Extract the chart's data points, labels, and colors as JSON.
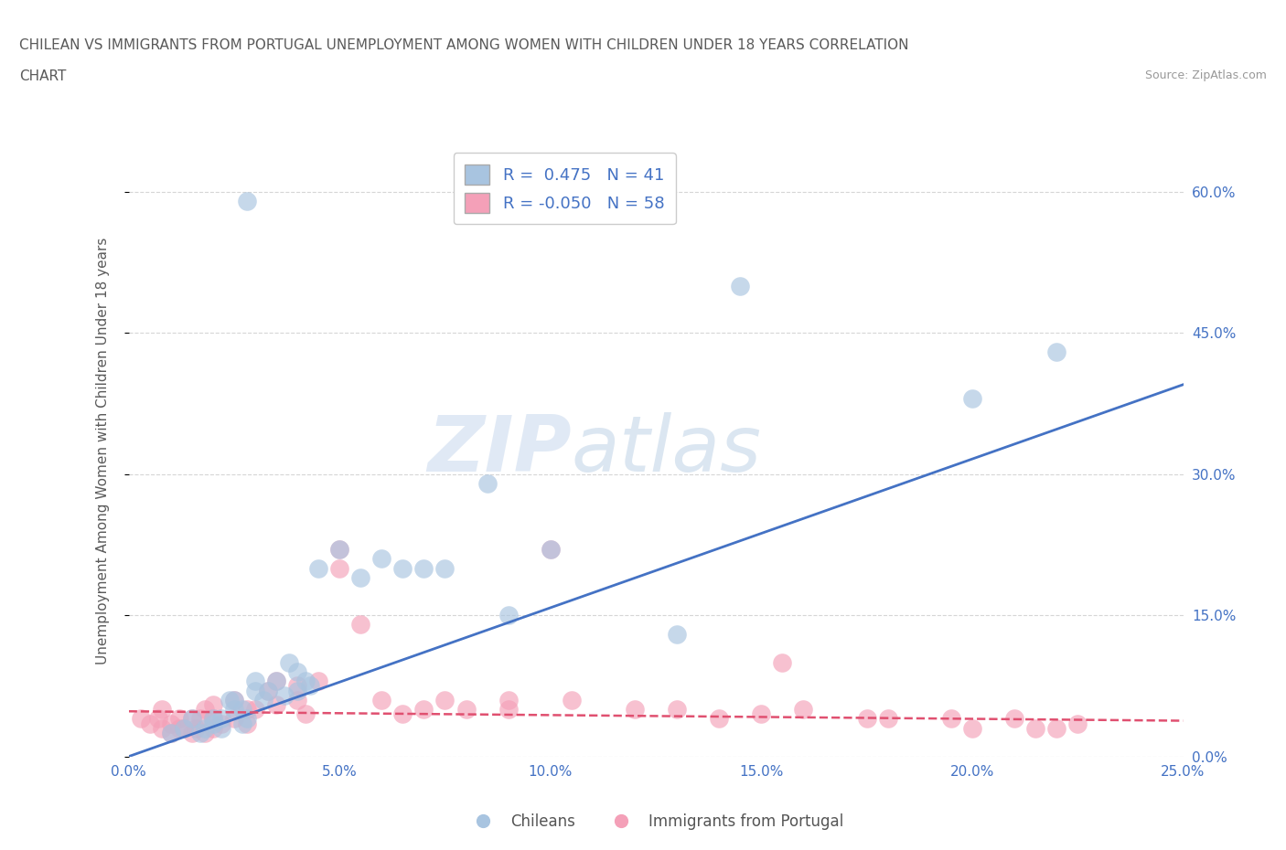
{
  "title_line1": "CHILEAN VS IMMIGRANTS FROM PORTUGAL UNEMPLOYMENT AMONG WOMEN WITH CHILDREN UNDER 18 YEARS CORRELATION",
  "title_line2": "CHART",
  "source": "Source: ZipAtlas.com",
  "ylabel": "Unemployment Among Women with Children Under 18 years",
  "xlim": [
    0.0,
    0.25
  ],
  "ylim": [
    0.0,
    0.65
  ],
  "xticks": [
    0.0,
    0.05,
    0.1,
    0.15,
    0.2,
    0.25
  ],
  "yticks_right": [
    0.0,
    0.15,
    0.3,
    0.45,
    0.6
  ],
  "ytick_labels_right": [
    "0.0%",
    "15.0%",
    "30.0%",
    "45.0%",
    "60.0%"
  ],
  "xtick_labels": [
    "0.0%",
    "5.0%",
    "10.0%",
    "15.0%",
    "20.0%",
    "25.0%"
  ],
  "chilean_legend": "Chileans",
  "portugal_legend": "Immigrants from Portugal",
  "blue_color": "#a8c4e0",
  "pink_color": "#f4a0b8",
  "blue_line_color": "#4472c4",
  "pink_line_color": "#e05070",
  "R_blue": 0.475,
  "N_blue": 41,
  "R_pink": -0.05,
  "N_pink": 58,
  "watermark_zip": "ZIP",
  "watermark_atlas": "atlas",
  "background_color": "#ffffff",
  "grid_color": "#cccccc",
  "title_color": "#5a5a5a",
  "axis_label_color": "#5a5a5a",
  "tick_color": "#4472c4",
  "blue_line_x0": 0.0,
  "blue_line_y0": 0.0,
  "blue_line_x1": 0.25,
  "blue_line_y1": 0.395,
  "pink_line_x0": 0.0,
  "pink_line_y0": 0.048,
  "pink_line_x1": 0.25,
  "pink_line_y1": 0.038,
  "blue_scatter_x": [
    0.028,
    0.01,
    0.013,
    0.015,
    0.017,
    0.018,
    0.02,
    0.02,
    0.022,
    0.022,
    0.024,
    0.025,
    0.025,
    0.027,
    0.027,
    0.028,
    0.03,
    0.03,
    0.032,
    0.033,
    0.035,
    0.037,
    0.038,
    0.04,
    0.04,
    0.042,
    0.043,
    0.045,
    0.05,
    0.055,
    0.06,
    0.065,
    0.07,
    0.075,
    0.085,
    0.09,
    0.1,
    0.13,
    0.145,
    0.2,
    0.22
  ],
  "blue_scatter_y": [
    0.59,
    0.025,
    0.03,
    0.04,
    0.025,
    0.03,
    0.035,
    0.04,
    0.03,
    0.04,
    0.06,
    0.05,
    0.06,
    0.035,
    0.05,
    0.04,
    0.07,
    0.08,
    0.06,
    0.07,
    0.08,
    0.065,
    0.1,
    0.07,
    0.09,
    0.08,
    0.075,
    0.2,
    0.22,
    0.19,
    0.21,
    0.2,
    0.2,
    0.2,
    0.29,
    0.15,
    0.22,
    0.13,
    0.5,
    0.38,
    0.43
  ],
  "pink_scatter_x": [
    0.003,
    0.005,
    0.007,
    0.008,
    0.008,
    0.01,
    0.01,
    0.012,
    0.012,
    0.013,
    0.015,
    0.015,
    0.016,
    0.017,
    0.018,
    0.018,
    0.02,
    0.02,
    0.02,
    0.022,
    0.025,
    0.025,
    0.028,
    0.028,
    0.03,
    0.033,
    0.035,
    0.035,
    0.04,
    0.04,
    0.042,
    0.045,
    0.05,
    0.05,
    0.055,
    0.06,
    0.065,
    0.07,
    0.075,
    0.08,
    0.09,
    0.09,
    0.1,
    0.105,
    0.12,
    0.13,
    0.14,
    0.15,
    0.155,
    0.16,
    0.175,
    0.18,
    0.195,
    0.2,
    0.21,
    0.215,
    0.22,
    0.225
  ],
  "pink_scatter_y": [
    0.04,
    0.035,
    0.04,
    0.03,
    0.05,
    0.035,
    0.025,
    0.03,
    0.04,
    0.03,
    0.025,
    0.04,
    0.03,
    0.04,
    0.05,
    0.025,
    0.03,
    0.04,
    0.055,
    0.035,
    0.06,
    0.04,
    0.05,
    0.035,
    0.05,
    0.07,
    0.055,
    0.08,
    0.06,
    0.075,
    0.045,
    0.08,
    0.2,
    0.22,
    0.14,
    0.06,
    0.045,
    0.05,
    0.06,
    0.05,
    0.05,
    0.06,
    0.22,
    0.06,
    0.05,
    0.05,
    0.04,
    0.045,
    0.1,
    0.05,
    0.04,
    0.04,
    0.04,
    0.03,
    0.04,
    0.03,
    0.03,
    0.035
  ]
}
